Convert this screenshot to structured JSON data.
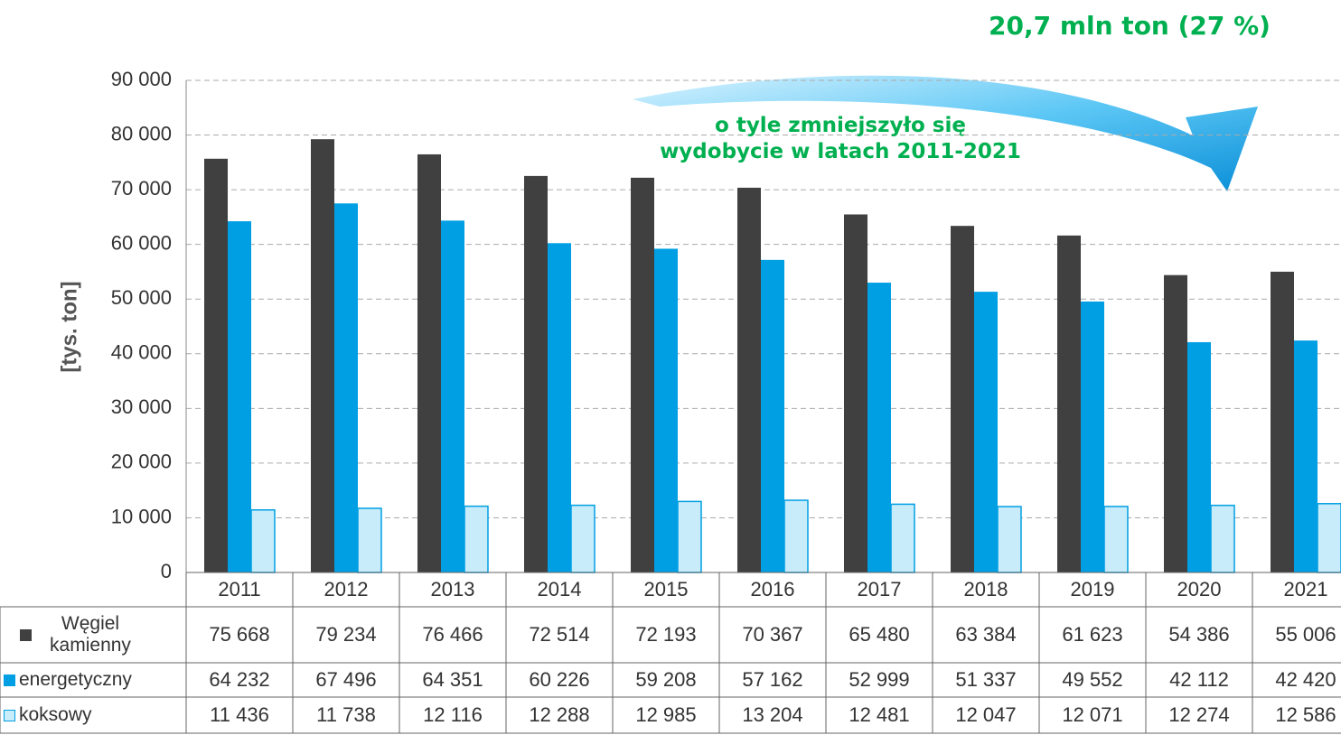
{
  "chart_data": {
    "type": "bar",
    "title": "20,7 mln ton (27 %)",
    "annotation": "o tyle zmniejszyło się wydobycie w latach 2011-2021",
    "y_label": "[tys. ton]",
    "categories": [
      "2011",
      "2012",
      "2013",
      "2014",
      "2015",
      "2016",
      "2017",
      "2018",
      "2019",
      "2020",
      "2021"
    ],
    "series": [
      {
        "name": "Węgiel kamienny",
        "color": "#404040",
        "values": [
          75668,
          79234,
          76466,
          72514,
          72193,
          70367,
          65480,
          63384,
          61623,
          54386,
          55006
        ],
        "value_labels": [
          "75 668",
          "79 234",
          "76 466",
          "72 514",
          "72 193",
          "70 367",
          "65 480",
          "63 384",
          "61 623",
          "54 386",
          "55 006"
        ]
      },
      {
        "name": "energetyczny",
        "color": "#009fe3",
        "values": [
          64232,
          67496,
          64351,
          60226,
          59208,
          57162,
          52999,
          51337,
          49552,
          42112,
          42420
        ],
        "value_labels": [
          "64 232",
          "67 496",
          "64 351",
          "60 226",
          "59 208",
          "57 162",
          "52 999",
          "51 337",
          "49 552",
          "42 112",
          "42 420"
        ]
      },
      {
        "name": "koksowy",
        "color": "#c8ecfa",
        "values": [
          11436,
          11738,
          12116,
          12288,
          12985,
          13204,
          12481,
          12047,
          12071,
          12274,
          12586
        ],
        "value_labels": [
          "11 436",
          "11 738",
          "12 116",
          "12 288",
          "12 985",
          "13 204",
          "12 481",
          "12 047",
          "12 071",
          "12 274",
          "12 586"
        ]
      }
    ],
    "ylim": [
      0,
      90000
    ],
    "yticks": [
      0,
      {
        "value": 10000,
        "label": "10 000"
      },
      {
        "value": 20000,
        "label": "20 000"
      },
      {
        "value": 30000,
        "label": "30 000"
      },
      {
        "value": 40000,
        "label": "40 000"
      },
      {
        "value": 50000,
        "label": "50 000"
      },
      {
        "value": 60000,
        "label": "60 000"
      },
      {
        "value": 70000,
        "label": "70 000"
      },
      {
        "value": 80000,
        "label": "80 000"
      },
      {
        "value": 90000,
        "label": "90 000"
      }
    ],
    "grid": true
  }
}
